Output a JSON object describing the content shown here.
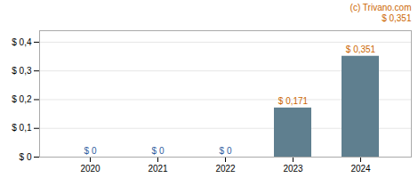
{
  "chart_data": {
    "type": "bar",
    "categories": [
      "2020",
      "2021",
      "2022",
      "2023",
      "2024"
    ],
    "values": [
      0,
      0,
      0,
      0.171,
      0.351
    ],
    "value_labels": [
      "$ 0",
      "$ 0",
      "$ 0",
      "$ 0,171",
      "$ 0,351"
    ],
    "data_labels": true,
    "color": "#5f7f8f",
    "ylim": [
      0,
      0.44
    ],
    "yticks": [
      {
        "value": 0,
        "label": "$ 0"
      },
      {
        "value": 0.1,
        "label": "$ 0,1"
      },
      {
        "value": 0.2,
        "label": "$ 0,2"
      },
      {
        "value": 0.3,
        "label": "$ 0,3"
      },
      {
        "value": 0.4,
        "label": "$ 0,4"
      }
    ],
    "grid": true,
    "annotations": [
      "(c) Trivano.com",
      "$ 0,351"
    ]
  }
}
